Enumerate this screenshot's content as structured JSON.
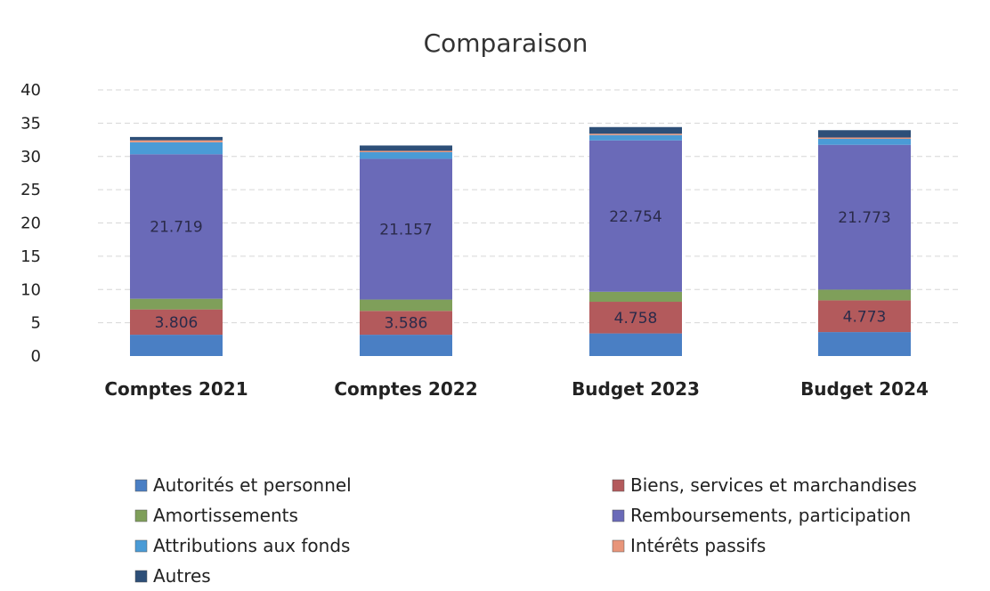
{
  "chart_data": {
    "type": "bar",
    "stacked": true,
    "title": "Comparaison",
    "categories": [
      "Comptes 2021",
      "Comptes 2022",
      "Budget 2023",
      "Budget 2024"
    ],
    "ylim": [
      0,
      40
    ],
    "yticks": [
      0,
      5,
      10,
      15,
      20,
      25,
      30,
      35,
      40
    ],
    "grid": true,
    "legend_position": "bottom",
    "series": [
      {
        "name": "Autorités et personnel",
        "color": "#4a7fc4",
        "values": [
          3.2,
          3.2,
          3.4,
          3.6
        ],
        "labels": [
          "",
          "",
          "",
          ""
        ]
      },
      {
        "name": "Biens, services et marchandises",
        "color": "#b35a5c",
        "values": [
          3.806,
          3.586,
          4.758,
          4.773
        ],
        "labels": [
          "3.806",
          "3.586",
          "4.758",
          "4.773"
        ]
      },
      {
        "name": "Amortissements",
        "color": "#7f9f5a",
        "values": [
          1.6,
          1.7,
          1.5,
          1.6
        ],
        "labels": [
          "",
          "",
          "",
          ""
        ]
      },
      {
        "name": "Remboursements, participation",
        "color": "#6a6ab8",
        "values": [
          21.719,
          21.157,
          22.754,
          21.773
        ],
        "labels": [
          "21.719",
          "21.157",
          "22.754",
          "21.773"
        ]
      },
      {
        "name": "Attributions aux fonds",
        "color": "#4a9bd6",
        "values": [
          1.8,
          1.0,
          0.8,
          0.9
        ],
        "labels": [
          "",
          "",
          "",
          ""
        ]
      },
      {
        "name": "Intérêts passifs",
        "color": "#e8957a",
        "values": [
          0.3,
          0.2,
          0.2,
          0.2
        ],
        "labels": [
          "",
          "",
          "",
          ""
        ]
      },
      {
        "name": "Autres",
        "color": "#2d4f78",
        "values": [
          0.5,
          0.8,
          1.0,
          1.1
        ],
        "labels": [
          "",
          "",
          "",
          ""
        ]
      }
    ]
  }
}
